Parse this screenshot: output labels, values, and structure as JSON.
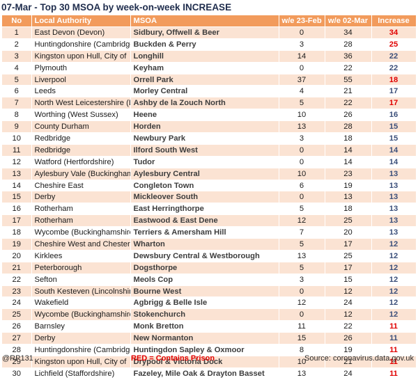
{
  "title": "07-Mar - Top 30 MSOA by week-on-week INCREASE",
  "columns": [
    "No",
    "Local Authority",
    "MSOA",
    "w/e 23-Feb",
    "w/e 02-Mar",
    "Increase"
  ],
  "colors": {
    "header": "#f29b5c",
    "band": "#fbe3d3",
    "prison": "#e00000",
    "normal": "#3b4f7a"
  },
  "rows": [
    {
      "no": "1",
      "la": "East Devon (Devon)",
      "msoa": "Sidbury, Offwell & Beer",
      "feb": "0",
      "mar": "34",
      "inc": "34",
      "prison": true
    },
    {
      "no": "2",
      "la": "Huntingdonshire (Cambridgeshire)",
      "msoa": "Buckden & Perry",
      "feb": "3",
      "mar": "28",
      "inc": "25",
      "prison": true
    },
    {
      "no": "3",
      "la": "Kingston upon Hull, City of",
      "msoa": "Longhill",
      "feb": "14",
      "mar": "36",
      "inc": "22",
      "prison": false
    },
    {
      "no": "4",
      "la": "Plymouth",
      "msoa": "Keyham",
      "feb": "0",
      "mar": "22",
      "inc": "22",
      "prison": false
    },
    {
      "no": "5",
      "la": "Liverpool",
      "msoa": "Orrell Park",
      "feb": "37",
      "mar": "55",
      "inc": "18",
      "prison": true
    },
    {
      "no": "6",
      "la": "Leeds",
      "msoa": "Morley Central",
      "feb": "4",
      "mar": "21",
      "inc": "17",
      "prison": false
    },
    {
      "no": "7",
      "la": "North West Leicestershire (Leicestershire)",
      "msoa": "Ashby de la Zouch North",
      "feb": "5",
      "mar": "22",
      "inc": "17",
      "prison": true
    },
    {
      "no": "8",
      "la": "Worthing (West Sussex)",
      "msoa": "Heene",
      "feb": "10",
      "mar": "26",
      "inc": "16",
      "prison": false
    },
    {
      "no": "9",
      "la": "County Durham",
      "msoa": "Horden",
      "feb": "13",
      "mar": "28",
      "inc": "15",
      "prison": false
    },
    {
      "no": "10",
      "la": "Redbridge",
      "msoa": "Newbury Park",
      "feb": "3",
      "mar": "18",
      "inc": "15",
      "prison": false
    },
    {
      "no": "11",
      "la": "Redbridge",
      "msoa": "Ilford South West",
      "feb": "0",
      "mar": "14",
      "inc": "14",
      "prison": false
    },
    {
      "no": "12",
      "la": "Watford (Hertfordshire)",
      "msoa": "Tudor",
      "feb": "0",
      "mar": "14",
      "inc": "14",
      "prison": false
    },
    {
      "no": "13",
      "la": "Aylesbury Vale (Buckinghamshire)",
      "msoa": "Aylesbury Central",
      "feb": "10",
      "mar": "23",
      "inc": "13",
      "prison": false
    },
    {
      "no": "14",
      "la": "Cheshire East",
      "msoa": "Congleton Town",
      "feb": "6",
      "mar": "19",
      "inc": "13",
      "prison": false
    },
    {
      "no": "15",
      "la": "Derby",
      "msoa": "Mickleover South",
      "feb": "0",
      "mar": "13",
      "inc": "13",
      "prison": false
    },
    {
      "no": "16",
      "la": "Rotherham",
      "msoa": "East Herringthorpe",
      "feb": "5",
      "mar": "18",
      "inc": "13",
      "prison": false
    },
    {
      "no": "17",
      "la": "Rotherham",
      "msoa": "Eastwood & East Dene",
      "feb": "12",
      "mar": "25",
      "inc": "13",
      "prison": false
    },
    {
      "no": "18",
      "la": "Wycombe (Buckinghamshire)",
      "msoa": "Terriers & Amersham Hill",
      "feb": "7",
      "mar": "20",
      "inc": "13",
      "prison": false
    },
    {
      "no": "19",
      "la": "Cheshire West and Chester",
      "msoa": "Wharton",
      "feb": "5",
      "mar": "17",
      "inc": "12",
      "prison": false
    },
    {
      "no": "20",
      "la": "Kirklees",
      "msoa": "Dewsbury Central & Westborough",
      "feb": "13",
      "mar": "25",
      "inc": "12",
      "prison": false
    },
    {
      "no": "21",
      "la": "Peterborough",
      "msoa": "Dogsthorpe",
      "feb": "5",
      "mar": "17",
      "inc": "12",
      "prison": false
    },
    {
      "no": "22",
      "la": "Sefton",
      "msoa": "Meols Cop",
      "feb": "3",
      "mar": "15",
      "inc": "12",
      "prison": false
    },
    {
      "no": "23",
      "la": "South Kesteven (Lincolnshire)",
      "msoa": "Bourne West",
      "feb": "0",
      "mar": "12",
      "inc": "12",
      "prison": false
    },
    {
      "no": "24",
      "la": "Wakefield",
      "msoa": "Agbrigg & Belle Isle",
      "feb": "12",
      "mar": "24",
      "inc": "12",
      "prison": false
    },
    {
      "no": "25",
      "la": "Wycombe (Buckinghamshire)",
      "msoa": "Stokenchurch",
      "feb": "0",
      "mar": "12",
      "inc": "12",
      "prison": false
    },
    {
      "no": "26",
      "la": "Barnsley",
      "msoa": "Monk Bretton",
      "feb": "11",
      "mar": "22",
      "inc": "11",
      "prison": true
    },
    {
      "no": "27",
      "la": "Derby",
      "msoa": "New Normanton",
      "feb": "15",
      "mar": "26",
      "inc": "11",
      "prison": false
    },
    {
      "no": "28",
      "la": "Huntingdonshire (Cambridgeshire)",
      "msoa": "Huntingdon Sapley & Oxmoor",
      "feb": "8",
      "mar": "19",
      "inc": "11",
      "prison": true
    },
    {
      "no": "29",
      "la": "Kingston upon Hull, City of",
      "msoa": "Drypool & Victoria Dock",
      "feb": "10",
      "mar": "21",
      "inc": "11",
      "prison": true
    },
    {
      "no": "30",
      "la": "Lichfield (Staffordshire)",
      "msoa": "Fazeley, Mile Oak & Drayton Basset",
      "feb": "13",
      "mar": "24",
      "inc": "11",
      "prison": true
    }
  ],
  "footer": {
    "handle": "@RP131",
    "legend": "RED = Contains Prison",
    "source": "Source: coronavirus.data.gov.uk"
  }
}
